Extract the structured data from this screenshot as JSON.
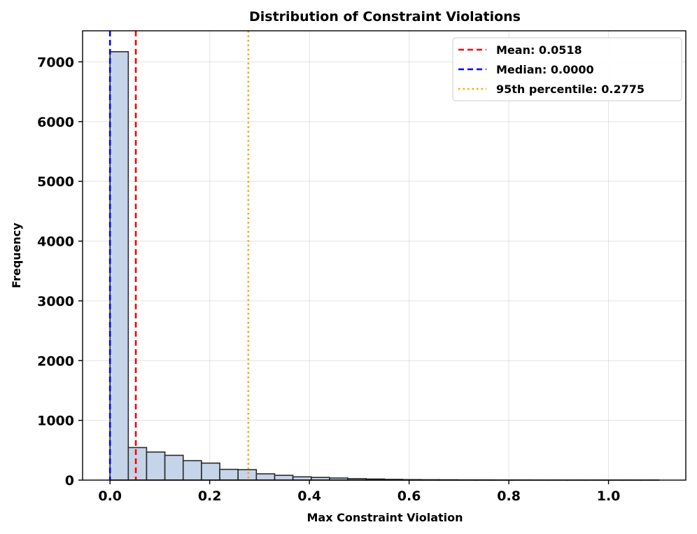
{
  "chart_data": {
    "type": "bar",
    "title": "Distribution of Constraint Violations",
    "xlabel": "Max Constraint Violation",
    "ylabel": "Frequency",
    "xlim": [
      -0.055,
      1.155
    ],
    "ylim": [
      0,
      7520
    ],
    "xticks": [
      0.0,
      0.2,
      0.4,
      0.6,
      0.8,
      1.0
    ],
    "xtick_labels": [
      "0.0",
      "0.2",
      "0.4",
      "0.6",
      "0.8",
      "1.0"
    ],
    "yticks": [
      0,
      1000,
      2000,
      3000,
      4000,
      5000,
      6000,
      7000
    ],
    "ytick_labels": [
      "0",
      "1000",
      "2000",
      "3000",
      "4000",
      "5000",
      "6000",
      "7000"
    ],
    "grid": true,
    "bin_width": 0.0367,
    "bin_edges_start": 0.0,
    "counts": [
      7170,
      545,
      470,
      415,
      325,
      285,
      180,
      175,
      105,
      80,
      55,
      45,
      35,
      25,
      18,
      12,
      8,
      6,
      5,
      3,
      3,
      2,
      2,
      1,
      1,
      1,
      1,
      1,
      1,
      1
    ],
    "bar_color": "#c5d4e8",
    "reference_lines": [
      {
        "label": "Mean: 0.0518",
        "x": 0.0518,
        "color": "#ff0000",
        "style": "dashed"
      },
      {
        "label": "Median: 0.0000",
        "x": 0.0,
        "color": "#0000ff",
        "style": "dashed"
      },
      {
        "label": "95th percentile: 0.2775",
        "x": 0.2775,
        "color": "#ffa500",
        "style": "dotted"
      }
    ],
    "legend_position": "top-right"
  }
}
